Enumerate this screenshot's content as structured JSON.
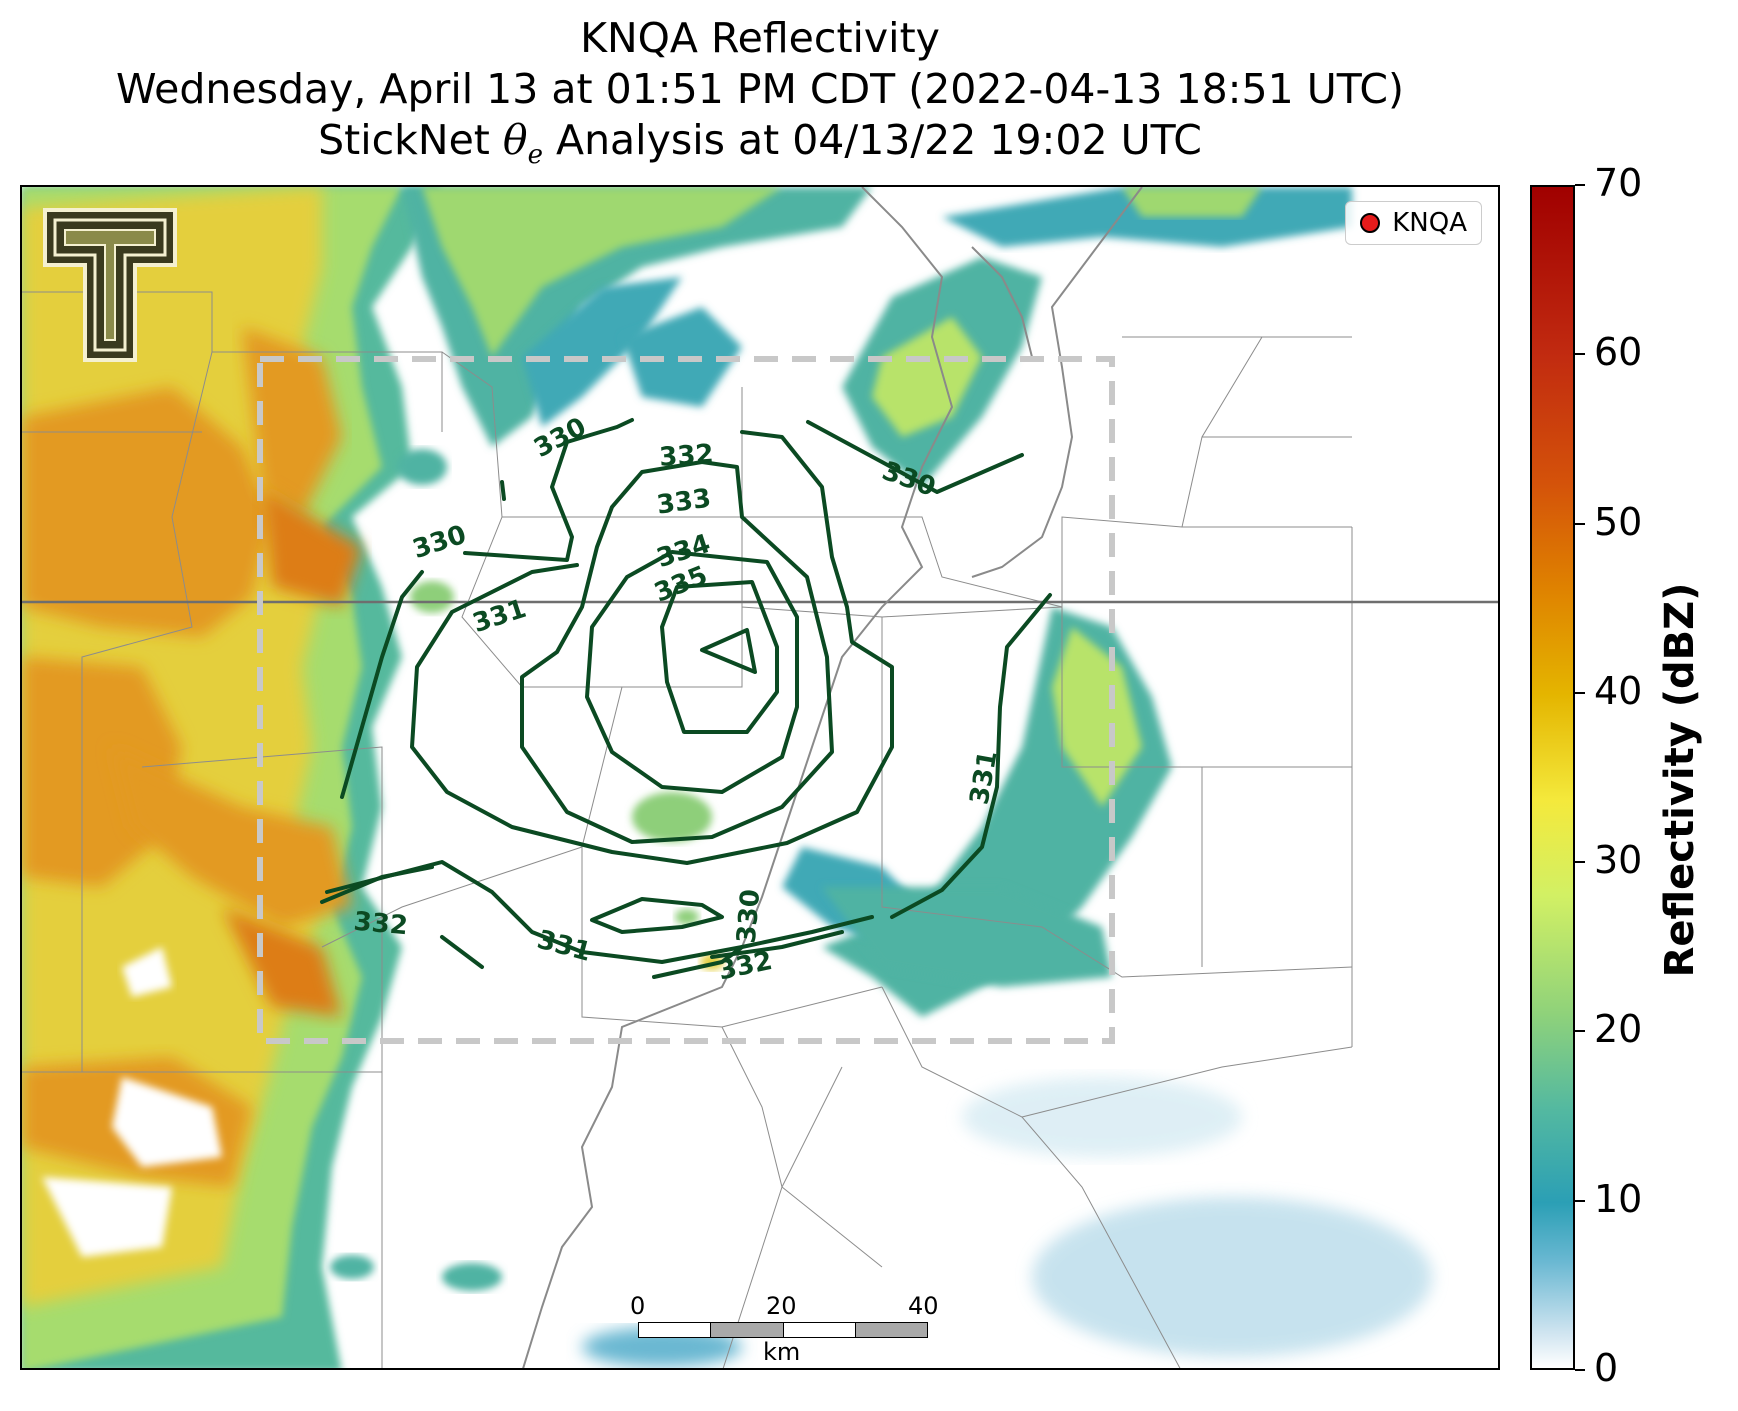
{
  "title": {
    "line1": "KNQA Reflectivity",
    "line2": "Wednesday, April 13 at 01:51 PM CDT (2022-04-13 18:51 UTC)",
    "line3_prefix": "StickNet ",
    "line3_symbol": "θ",
    "line3_subscript": "e",
    "line3_suffix": " Analysis at 04/13/22 19:02 UTC"
  },
  "legend": {
    "label": "KNQA",
    "marker_color": "#e51b1b"
  },
  "contour_labels": [
    "330",
    "330",
    "330",
    "330",
    "331",
    "331",
    "331",
    "332",
    "332",
    "332",
    "333",
    "334",
    "335"
  ],
  "contour_color": "#0b4a22",
  "scalebar": {
    "ticks": [
      "0",
      "20",
      "40"
    ],
    "unit": "km"
  },
  "colorbar": {
    "title": "Reflectivity (dBZ)",
    "ticks": [
      "0",
      "10",
      "20",
      "30",
      "40",
      "50",
      "60",
      "70"
    ]
  }
}
